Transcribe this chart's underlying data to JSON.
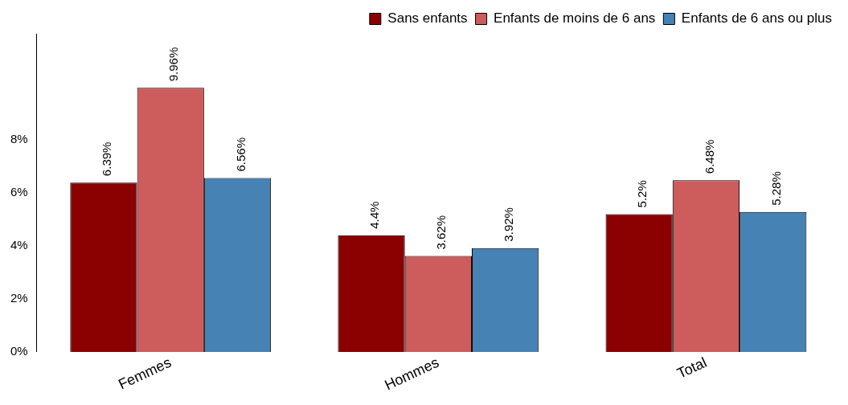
{
  "chart_data": {
    "type": "bar",
    "categories": [
      "Femmes",
      "Hommes",
      "Total"
    ],
    "series": [
      {
        "name": "Sans enfants",
        "color": "#8b0000",
        "values": [
          6.39,
          4.4,
          5.2
        ],
        "value_labels": [
          "6.39%",
          "4.4%",
          "5.2%"
        ]
      },
      {
        "name": "Enfants de moins de 6 ans",
        "color": "#cd5c5c",
        "values": [
          9.96,
          3.62,
          6.48
        ],
        "value_labels": [
          "9.96%",
          "3.62%",
          "6.48%"
        ]
      },
      {
        "name": "Enfants de 6 ans ou plus",
        "color": "#4682b4",
        "values": [
          6.56,
          3.92,
          5.28
        ],
        "value_labels": [
          "6.56%",
          "3.92%",
          "5.28%"
        ]
      }
    ],
    "ylim": [
      0,
      12
    ],
    "yticks": [
      {
        "value": 0,
        "label": "0%"
      },
      {
        "value": 2,
        "label": "2%"
      },
      {
        "value": 4,
        "label": "4%"
      },
      {
        "value": 6,
        "label": "6%"
      },
      {
        "value": 8,
        "label": "8%"
      }
    ],
    "grid": false,
    "legend": "top right"
  }
}
